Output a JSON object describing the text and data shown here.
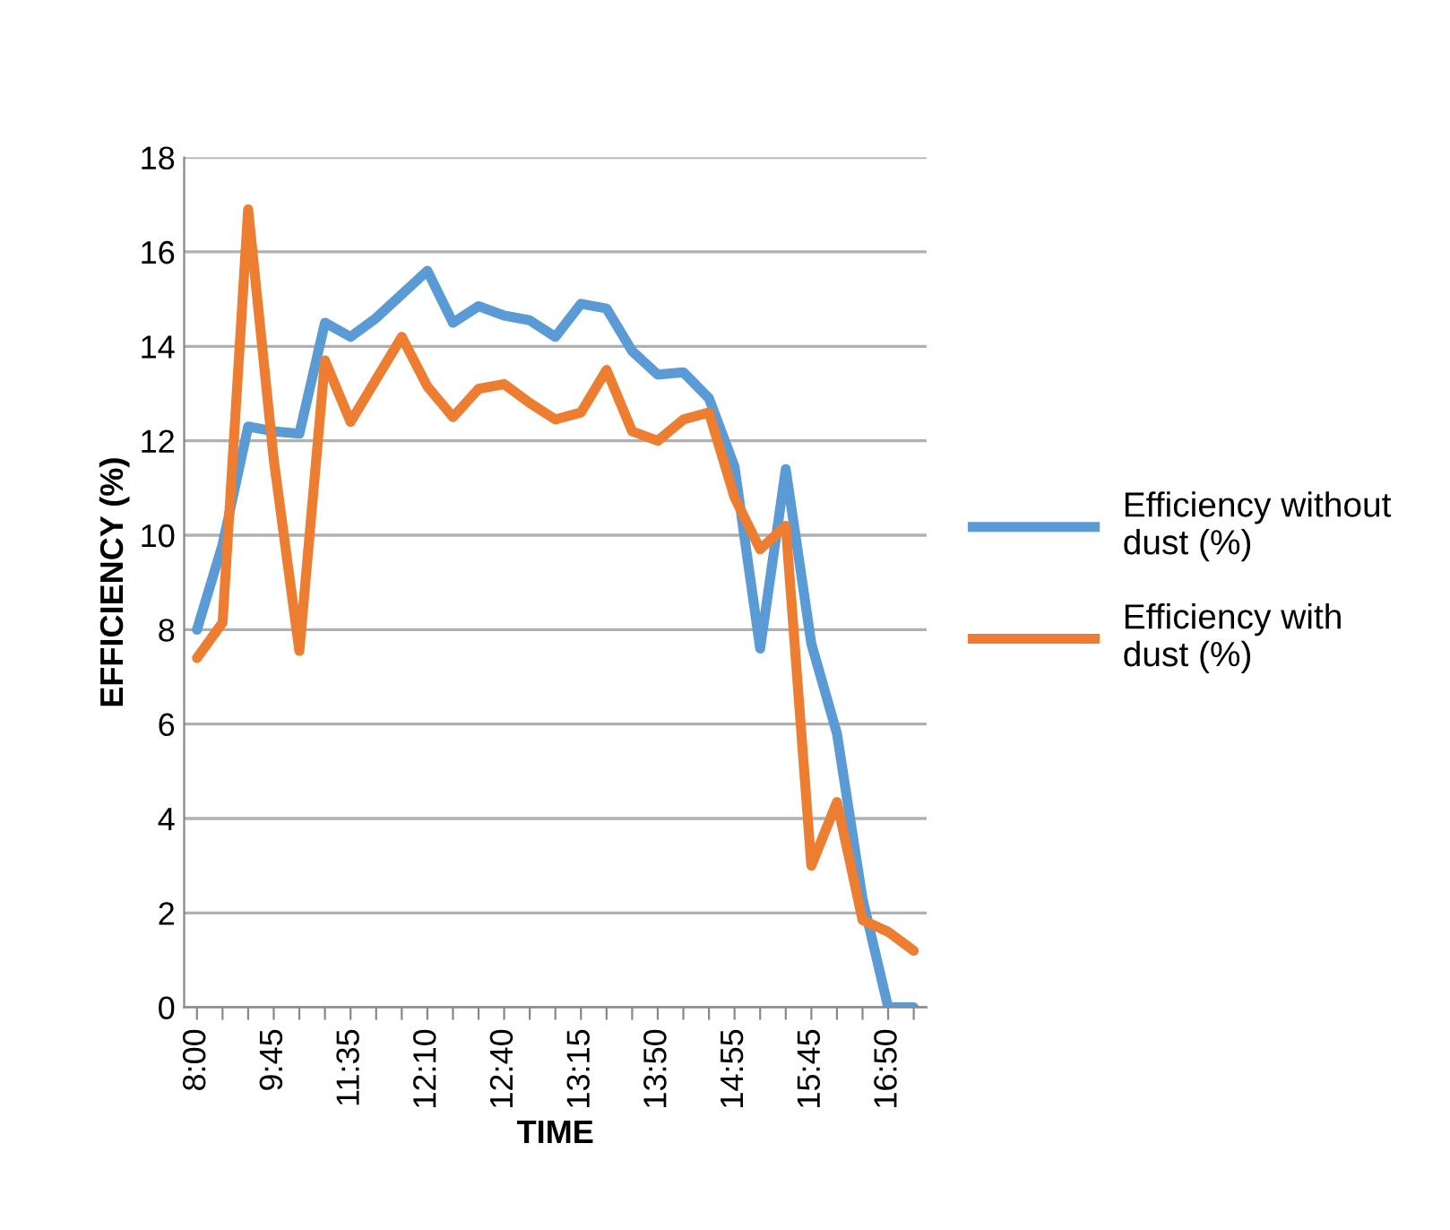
{
  "chart_data": {
    "type": "line",
    "xlabel": "TIME",
    "ylabel": "EFFICIENCY (%)",
    "categories": [
      "8:00",
      null,
      null,
      "9:45",
      null,
      null,
      "11:35",
      null,
      null,
      "12:10",
      null,
      null,
      "12:40",
      null,
      null,
      "13:15",
      null,
      null,
      "13:50",
      null,
      null,
      "14:55",
      null,
      null,
      "15:45",
      null,
      null,
      "16:50",
      null
    ],
    "series": [
      {
        "name": "Efficiency without dust (%)",
        "color": "#5b9bd5",
        "values": [
          8.0,
          9.8,
          12.3,
          12.2,
          12.15,
          14.5,
          14.2,
          14.6,
          15.1,
          15.6,
          14.5,
          14.85,
          14.65,
          14.55,
          14.2,
          14.9,
          14.8,
          13.9,
          13.4,
          13.45,
          12.9,
          11.45,
          7.6,
          11.4,
          7.7,
          5.8,
          2.3,
          0,
          0
        ]
      },
      {
        "name": "Efficiency with dust (%)",
        "color": "#ed7d31",
        "values": [
          7.4,
          8.15,
          16.9,
          11.6,
          7.55,
          13.7,
          12.4,
          13.3,
          14.2,
          13.15,
          12.5,
          13.1,
          13.2,
          12.8,
          12.45,
          12.6,
          13.5,
          12.2,
          12.0,
          12.45,
          12.6,
          10.8,
          9.7,
          10.2,
          3.0,
          4.35,
          1.85,
          1.6,
          1.2
        ]
      }
    ],
    "ylim": [
      0,
      18
    ],
    "yticks": [
      0,
      2,
      4,
      6,
      8,
      10,
      12,
      14,
      16,
      18
    ],
    "grid": "y",
    "legend": "right",
    "marker": "none",
    "line_style": "solid"
  }
}
